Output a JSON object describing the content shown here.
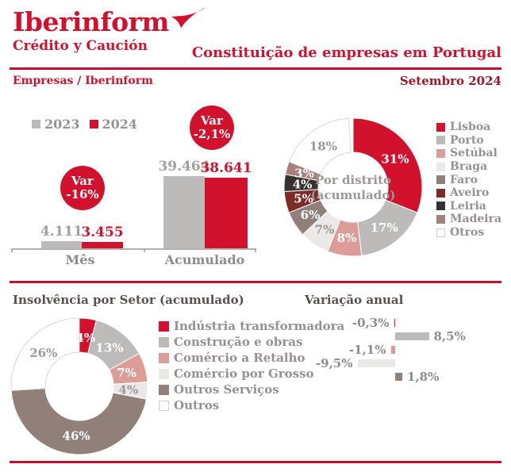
{
  "header": {
    "logo": {
      "name": "Iberinform",
      "tagline": "Crédito y Caución"
    },
    "title": "Constituição de empresas em Portugal",
    "breadcrumb": "Empresas / Iberinform",
    "date": "Setembro 2024"
  },
  "colors": {
    "brand_red": "#d2122d",
    "dark_red": "#a41429",
    "rule_red": "#c8102e",
    "gray": "#bcbbba",
    "pink": "#dc9c97",
    "light_gray": "#ebe9e7",
    "brown": "#91807a",
    "maroon": "#7d2b26",
    "near_black": "#37322f",
    "rose": "#a8807a",
    "white": "#ffffff"
  },
  "chart_data": [
    {
      "type": "bar",
      "name": "constituicao-de-empresas",
      "legend": [
        {
          "label": "2023",
          "color": "#bcbbba"
        },
        {
          "label": "2024",
          "color": "#d2122d"
        }
      ],
      "categories": [
        "Mês",
        "Acumulado"
      ],
      "series": [
        {
          "name": "2023",
          "color": "#bcbbba",
          "text_color": "#a3a1a0",
          "values": [
            4111,
            39464
          ],
          "display": [
            "4.111",
            "39.464"
          ]
        },
        {
          "name": "2024",
          "color": "#d2122d",
          "text_color": "#d2122d",
          "values": [
            3455,
            38641
          ],
          "display": [
            "3.455",
            "38.641"
          ]
        }
      ],
      "variations": [
        {
          "line1": "Var",
          "line2": "-16%"
        },
        {
          "line1": "Var",
          "line2": "-2,1%"
        }
      ],
      "ylim": [
        0,
        40000
      ]
    },
    {
      "type": "pie",
      "name": "por-distrito",
      "center_line1": "Por distrito",
      "center_line2": "(acumulado)",
      "legend_position": "right",
      "segments": [
        {
          "label": "Lisboa",
          "value": 31,
          "display": "31%",
          "color": "#d2122d",
          "label_color": "#ffffff"
        },
        {
          "label": "Porto",
          "value": 17,
          "display": "17%",
          "color": "#bcbbba",
          "label_color": "#ffffff"
        },
        {
          "label": "Setúbal",
          "value": 8,
          "display": "8%",
          "color": "#dc9c97",
          "label_color": "#ffffff"
        },
        {
          "label": "Braga",
          "value": 7,
          "display": "7%",
          "color": "#ebe9e7",
          "label_color": "#9b9998"
        },
        {
          "label": "Faro",
          "value": 6,
          "display": "6%",
          "color": "#91807a",
          "label_color": "#ffffff"
        },
        {
          "label": "Aveiro",
          "value": 5,
          "display": "5%",
          "color": "#7d2b26",
          "label_color": "#ffffff"
        },
        {
          "label": "Leiria",
          "value": 4,
          "display": "4%",
          "color": "#37322f",
          "label_color": "#ffffff"
        },
        {
          "label": "Madeira",
          "value": 3,
          "display": "3%",
          "color": "#a8807a",
          "label_color": "#ffffff"
        },
        {
          "label": "Otros",
          "value": 18,
          "display": "18%",
          "color": "#ffffff",
          "label_color": "#9b9998"
        }
      ]
    },
    {
      "type": "pie",
      "name": "insolvencia-por-setor",
      "title": "Insolvência por Setor (acumulado)",
      "legend_position": "right",
      "segments": [
        {
          "label": "Indústria transformadora",
          "value": 4,
          "display": "4%",
          "color": "#d2122d",
          "label_color": "#ffffff"
        },
        {
          "label": "Construção e obras",
          "value": 13,
          "display": "13%",
          "color": "#bcbbba",
          "label_color": "#ffffff"
        },
        {
          "label": "Comércio a Retalho",
          "value": 7,
          "display": "7%",
          "color": "#dc9c97",
          "label_color": "#ffffff"
        },
        {
          "label": "Comércio por Grosso",
          "value": 4,
          "display": "4%",
          "color": "#ebe9e7",
          "label_color": "#9b9998"
        },
        {
          "label": "Outros Serviços",
          "value": 46,
          "display": "46%",
          "color": "#91807a",
          "label_color": "#ffffff"
        },
        {
          "label": "Outros",
          "value": 26,
          "display": "26%",
          "color": "#ffffff",
          "label_color": "#9b9998"
        }
      ]
    },
    {
      "type": "bar",
      "name": "variacao-anual",
      "title": "Variação anual",
      "orientation": "horizontal",
      "bars": [
        {
          "value": -0.3,
          "display": "-0,3%",
          "color": "#d2122d"
        },
        {
          "value": 8.5,
          "display": "8,5%",
          "color": "#bcbbba"
        },
        {
          "value": -1.1,
          "display": "-1,1%",
          "color": "#dc9c97"
        },
        {
          "value": -9.5,
          "display": "-9,5%",
          "color": "#ebe9e7"
        },
        {
          "value": 1.8,
          "display": "1,8%",
          "color": "#91807a"
        }
      ]
    }
  ]
}
